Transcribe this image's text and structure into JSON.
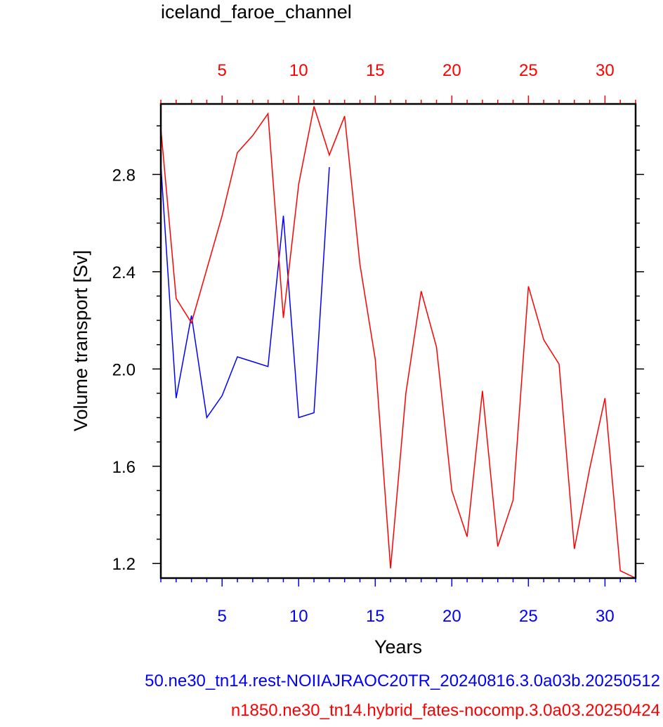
{
  "chart_data": {
    "type": "line",
    "title": "iceland_faroe_channel",
    "xlabel": "Years",
    "ylabel": "Volume transport [Sv]",
    "xlim": [
      1,
      32
    ],
    "ylim": [
      1.14,
      3.09
    ],
    "yticks": [
      "1.2",
      "1.6",
      "2.0",
      "2.4",
      "2.8"
    ],
    "xticks_bottom": [
      "5",
      "10",
      "15",
      "20",
      "25",
      "30"
    ],
    "xticks_top": [
      "5",
      "10",
      "15",
      "20",
      "25",
      "30"
    ],
    "bottom_axis_color": "#0000ff",
    "top_axis_color": "#ff0000",
    "grid": false,
    "series": [
      {
        "name": "...0.ne30_tn14.rest-NOIIAJRAOC20TR_20240816.3.0a03b.20250512",
        "color": "#0000ff",
        "x": [
          1,
          2,
          3,
          4,
          5,
          6,
          7,
          8,
          9,
          10,
          11,
          12
        ],
        "y": [
          2.84,
          1.88,
          2.22,
          1.8,
          1.89,
          2.05,
          2.03,
          2.01,
          2.63,
          1.8,
          1.82,
          2.83
        ]
      },
      {
        "name": "n1850.ne30_tn14.hybrid_fates-nocomp.3.0a03.20250424",
        "color": "#ff0000",
        "x": [
          1,
          2,
          3,
          4,
          5,
          6,
          7,
          8,
          9,
          10,
          11,
          12,
          13,
          14,
          15,
          16,
          17,
          18,
          19,
          20,
          21,
          22,
          23,
          24,
          25,
          26,
          27,
          28,
          29,
          30,
          31,
          32
        ],
        "y": [
          2.99,
          2.29,
          2.19,
          2.41,
          2.63,
          2.89,
          2.96,
          3.05,
          2.21,
          2.76,
          3.08,
          2.88,
          3.04,
          2.43,
          2.04,
          1.18,
          1.9,
          2.32,
          2.09,
          1.5,
          1.31,
          1.91,
          1.27,
          1.46,
          2.34,
          2.12,
          2.02,
          1.26,
          1.59,
          1.88,
          1.17,
          1.14
        ]
      }
    ]
  },
  "legend": {
    "blue_label": "50.ne30_tn14.rest-NOIIAJRAOC20TR_20240816.3.0a03b.20250512",
    "red_label": "n1850.ne30_tn14.hybrid_fates-nocomp.3.0a03.20250424"
  }
}
